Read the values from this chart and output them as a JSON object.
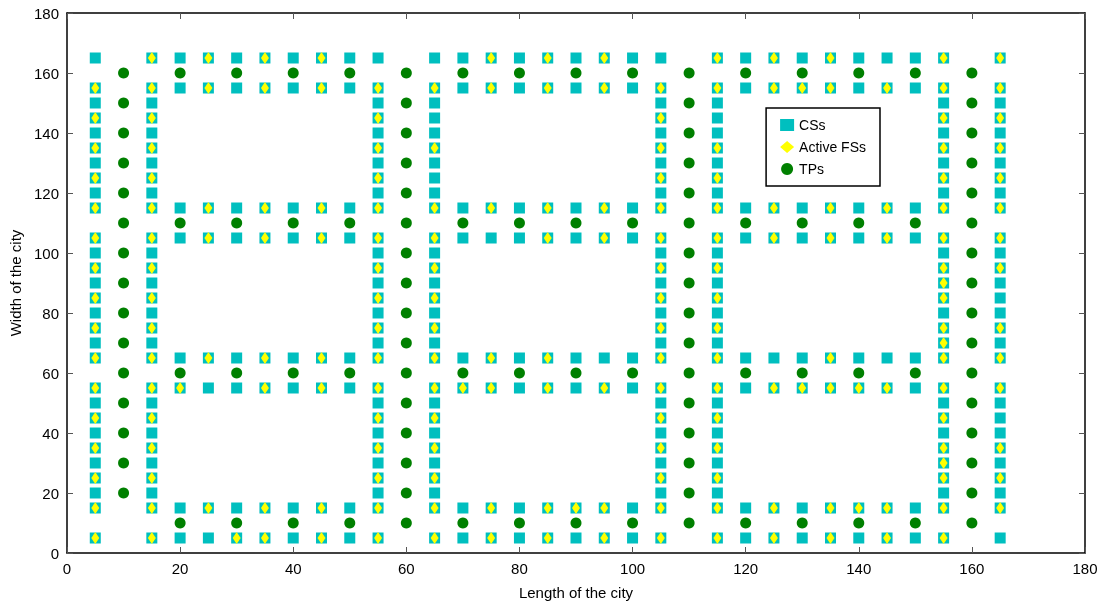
{
  "chart_data": {
    "type": "scatter",
    "xlabel": "Length of the city",
    "ylabel": "Width of the city",
    "xlim": [
      0,
      180
    ],
    "ylim": [
      0,
      180
    ],
    "xticks": [
      0,
      20,
      40,
      60,
      80,
      100,
      120,
      140,
      160,
      180
    ],
    "yticks": [
      0,
      20,
      40,
      60,
      80,
      100,
      120,
      140,
      160,
      180
    ],
    "grid": false,
    "legend": "top right",
    "series": [
      {
        "name": "CSs",
        "color": "#00bfbf",
        "marker": "square",
        "x": [
          5,
          5,
          5,
          5,
          5,
          5,
          5,
          5,
          5,
          5,
          5,
          5,
          5,
          5,
          5,
          5,
          5,
          5,
          5,
          5,
          5,
          5,
          5,
          5,
          5,
          5,
          5,
          5,
          5,
          15,
          15,
          15,
          15,
          15,
          15,
          15,
          15,
          15,
          15,
          15,
          15,
          15,
          15,
          15,
          15,
          15,
          15,
          15,
          15,
          15,
          15,
          15,
          15,
          15,
          15,
          15,
          15,
          15,
          55,
          55,
          55,
          55,
          55,
          55,
          55,
          55,
          55,
          55,
          55,
          55,
          55,
          55,
          55,
          55,
          55,
          55,
          55,
          55,
          55,
          55,
          55,
          55,
          55,
          55,
          55,
          55,
          55,
          65,
          65,
          65,
          65,
          65,
          65,
          65,
          65,
          65,
          65,
          65,
          65,
          65,
          65,
          65,
          65,
          65,
          65,
          65,
          65,
          65,
          65,
          65,
          65,
          65,
          65,
          65,
          65,
          65,
          105,
          105,
          105,
          105,
          105,
          105,
          105,
          105,
          105,
          105,
          105,
          105,
          105,
          105,
          105,
          105,
          105,
          105,
          105,
          105,
          105,
          105,
          105,
          105,
          105,
          105,
          105,
          105,
          105,
          115,
          115,
          115,
          115,
          115,
          115,
          115,
          115,
          115,
          115,
          115,
          115,
          115,
          115,
          115,
          115,
          115,
          115,
          115,
          115,
          115,
          115,
          115,
          115,
          115,
          115,
          115,
          115,
          115,
          155,
          155,
          155,
          155,
          155,
          155,
          155,
          155,
          155,
          155,
          155,
          155,
          155,
          155,
          155,
          155,
          155,
          155,
          155,
          155,
          155,
          155,
          155,
          155,
          155,
          155,
          155,
          155,
          155,
          165,
          165,
          165,
          165,
          165,
          165,
          165,
          165,
          165,
          165,
          165,
          165,
          165,
          165,
          165,
          165,
          165,
          165,
          165,
          165,
          165,
          165,
          165,
          165,
          165,
          165,
          165,
          165,
          165,
          20,
          25,
          30,
          35,
          40,
          45,
          50,
          70,
          75,
          80,
          85,
          90,
          95,
          100,
          120,
          125,
          130,
          135,
          140,
          145,
          150,
          20,
          25,
          30,
          35,
          40,
          45,
          50,
          70,
          75,
          80,
          85,
          90,
          95,
          100,
          120,
          125,
          130,
          135,
          140,
          145,
          150,
          20,
          25,
          30,
          35,
          40,
          45,
          50,
          70,
          75,
          80,
          85,
          90,
          95,
          100,
          120,
          125,
          130,
          135,
          140,
          145,
          150,
          20,
          25,
          30,
          35,
          40,
          45,
          50,
          70,
          75,
          80,
          85,
          90,
          95,
          100,
          120,
          125,
          130,
          135,
          140,
          145,
          150,
          20,
          25,
          30,
          35,
          40,
          45,
          50,
          70,
          75,
          80,
          85,
          90,
          95,
          100,
          120,
          125,
          130,
          135,
          140,
          145,
          150,
          20,
          25,
          30,
          35,
          40,
          45,
          50,
          70,
          75,
          80,
          85,
          90,
          95,
          100,
          120,
          125,
          130,
          135,
          140,
          145,
          150,
          20,
          25,
          30,
          35,
          40,
          45,
          50,
          70,
          75,
          80,
          85,
          90,
          95,
          100,
          120,
          125,
          130,
          135,
          140,
          145,
          150,
          20,
          25,
          30,
          35,
          40,
          45,
          50,
          70,
          75,
          80,
          85,
          90,
          95,
          100,
          120,
          125,
          130,
          135,
          140,
          145,
          150
        ],
        "values": [
          5,
          15,
          20,
          25,
          30,
          35,
          40,
          45,
          50,
          55,
          65,
          70,
          75,
          80,
          85,
          90,
          95,
          100,
          105,
          115,
          120,
          125,
          130,
          135,
          140,
          145,
          150,
          155,
          165,
          5,
          15,
          20,
          25,
          30,
          35,
          40,
          45,
          50,
          55,
          65,
          70,
          75,
          80,
          85,
          90,
          95,
          100,
          105,
          115,
          120,
          125,
          130,
          135,
          140,
          145,
          150,
          155,
          165,
          5,
          15,
          20,
          25,
          30,
          35,
          40,
          45,
          50,
          55,
          65,
          70,
          75,
          80,
          85,
          90,
          95,
          100,
          105,
          115,
          120,
          125,
          130,
          135,
          140,
          145,
          150,
          155,
          165,
          5,
          15,
          20,
          25,
          30,
          35,
          40,
          45,
          50,
          55,
          65,
          70,
          75,
          80,
          85,
          90,
          95,
          100,
          105,
          115,
          120,
          125,
          130,
          135,
          140,
          145,
          150,
          155,
          165,
          5,
          15,
          20,
          25,
          30,
          35,
          40,
          45,
          50,
          55,
          65,
          70,
          75,
          80,
          85,
          90,
          95,
          100,
          105,
          115,
          120,
          125,
          130,
          135,
          140,
          145,
          150,
          155,
          165,
          5,
          15,
          20,
          25,
          30,
          35,
          40,
          45,
          50,
          55,
          65,
          70,
          75,
          80,
          85,
          90,
          95,
          100,
          105,
          115,
          120,
          125,
          130,
          135,
          140,
          145,
          150,
          155,
          165,
          5,
          15,
          20,
          25,
          30,
          35,
          40,
          45,
          50,
          55,
          65,
          70,
          75,
          80,
          85,
          90,
          95,
          100,
          105,
          115,
          120,
          125,
          130,
          135,
          140,
          145,
          150,
          155,
          165,
          5,
          15,
          20,
          25,
          30,
          35,
          40,
          45,
          50,
          55,
          65,
          70,
          75,
          80,
          85,
          90,
          95,
          100,
          105,
          115,
          120,
          125,
          130,
          135,
          140,
          145,
          150,
          155,
          165,
          5,
          5,
          5,
          5,
          5,
          5,
          5,
          5,
          5,
          5,
          5,
          5,
          5,
          5,
          5,
          5,
          5,
          5,
          5,
          5,
          5,
          15,
          15,
          15,
          15,
          15,
          15,
          15,
          15,
          15,
          15,
          15,
          15,
          15,
          15,
          15,
          15,
          15,
          15,
          15,
          15,
          15,
          55,
          55,
          55,
          55,
          55,
          55,
          55,
          55,
          55,
          55,
          55,
          55,
          55,
          55,
          55,
          55,
          55,
          55,
          55,
          55,
          55,
          65,
          65,
          65,
          65,
          65,
          65,
          65,
          65,
          65,
          65,
          65,
          65,
          65,
          65,
          65,
          65,
          65,
          65,
          65,
          65,
          65,
          105,
          105,
          105,
          105,
          105,
          105,
          105,
          105,
          105,
          105,
          105,
          105,
          105,
          105,
          105,
          105,
          105,
          105,
          105,
          105,
          105,
          115,
          115,
          115,
          115,
          115,
          115,
          115,
          115,
          115,
          115,
          115,
          115,
          115,
          115,
          115,
          115,
          115,
          115,
          115,
          115,
          115,
          155,
          155,
          155,
          155,
          155,
          155,
          155,
          155,
          155,
          155,
          155,
          155,
          155,
          155,
          155,
          155,
          155,
          155,
          155,
          155,
          155,
          165,
          165,
          165,
          165,
          165,
          165,
          165,
          165,
          165,
          165,
          165,
          165,
          165,
          165,
          165,
          165,
          165,
          165,
          165,
          165,
          165
        ]
      },
      {
        "name": "Active FSs",
        "color": "#ffff00",
        "marker": "diamond",
        "x": [
          5,
          5,
          5,
          5,
          5,
          5,
          5,
          5,
          5,
          5,
          5,
          5,
          5,
          5,
          5,
          5,
          15,
          15,
          15,
          15,
          15,
          15,
          15,
          15,
          15,
          15,
          15,
          15,
          15,
          15,
          15,
          15,
          15,
          55,
          55,
          55,
          55,
          55,
          55,
          55,
          55,
          55,
          55,
          55,
          55,
          55,
          55,
          55,
          55,
          65,
          65,
          65,
          65,
          65,
          65,
          65,
          65,
          65,
          65,
          65,
          65,
          65,
          65,
          105,
          105,
          105,
          105,
          105,
          105,
          105,
          105,
          105,
          105,
          105,
          105,
          105,
          105,
          105,
          105,
          115,
          115,
          115,
          115,
          115,
          115,
          115,
          115,
          115,
          115,
          115,
          115,
          115,
          115,
          115,
          115,
          155,
          155,
          155,
          155,
          155,
          155,
          155,
          155,
          155,
          155,
          155,
          155,
          155,
          155,
          155,
          155,
          155,
          155,
          155,
          155,
          165,
          165,
          165,
          165,
          165,
          165,
          165,
          165,
          165,
          165,
          165,
          165,
          165,
          165,
          25,
          35,
          45,
          75,
          85,
          95,
          125,
          135,
          25,
          35,
          45,
          75,
          85,
          95,
          125,
          130,
          135,
          145,
          25,
          35,
          45,
          75,
          85,
          95,
          125,
          135,
          145,
          25,
          35,
          45,
          85,
          95,
          125,
          135,
          145,
          25,
          35,
          45,
          75,
          85,
          135,
          20,
          35,
          45,
          70,
          75,
          85,
          95,
          125,
          130,
          135,
          140,
          145,
          25,
          35,
          45,
          75,
          85,
          90,
          95,
          125,
          135,
          140,
          145,
          30,
          35,
          45,
          75,
          85,
          95,
          125,
          135,
          145
        ],
        "values": [
          5,
          15,
          25,
          35,
          45,
          55,
          65,
          75,
          85,
          95,
          105,
          115,
          125,
          135,
          145,
          155,
          5,
          15,
          25,
          35,
          45,
          55,
          65,
          75,
          85,
          95,
          105,
          115,
          125,
          135,
          145,
          155,
          165,
          5,
          15,
          25,
          35,
          45,
          55,
          65,
          75,
          85,
          95,
          105,
          115,
          125,
          135,
          145,
          155,
          5,
          15,
          25,
          35,
          45,
          55,
          65,
          75,
          85,
          95,
          105,
          115,
          135,
          155,
          5,
          15,
          25,
          35,
          45,
          55,
          65,
          75,
          85,
          95,
          105,
          115,
          125,
          135,
          145,
          155,
          5,
          15,
          25,
          35,
          45,
          55,
          65,
          75,
          85,
          95,
          105,
          115,
          125,
          135,
          155,
          165,
          5,
          15,
          25,
          30,
          35,
          45,
          55,
          65,
          70,
          75,
          85,
          90,
          95,
          105,
          115,
          125,
          135,
          145,
          155,
          165,
          15,
          25,
          35,
          55,
          65,
          75,
          95,
          105,
          115,
          125,
          135,
          145,
          155,
          165,
          165,
          165,
          165,
          165,
          165,
          165,
          165,
          165,
          155,
          155,
          155,
          155,
          155,
          155,
          155,
          155,
          155,
          155,
          115,
          115,
          115,
          115,
          115,
          115,
          115,
          115,
          115,
          105,
          105,
          105,
          105,
          105,
          105,
          105,
          105,
          65,
          65,
          65,
          65,
          65,
          65,
          55,
          55,
          55,
          55,
          55,
          55,
          55,
          55,
          55,
          55,
          55,
          55,
          15,
          15,
          15,
          15,
          15,
          15,
          15,
          15,
          15,
          15,
          15,
          5,
          5,
          5,
          5,
          5,
          5,
          5,
          5,
          5
        ]
      },
      {
        "name": "TPs",
        "color": "#008000",
        "marker": "circle",
        "x": [
          10,
          10,
          10,
          10,
          10,
          10,
          10,
          10,
          10,
          10,
          10,
          10,
          10,
          10,
          10,
          60,
          60,
          60,
          60,
          60,
          60,
          60,
          60,
          60,
          60,
          60,
          60,
          60,
          60,
          60,
          60,
          110,
          110,
          110,
          110,
          110,
          110,
          110,
          110,
          110,
          110,
          110,
          110,
          110,
          110,
          110,
          110,
          160,
          160,
          160,
          160,
          160,
          160,
          160,
          160,
          160,
          160,
          160,
          160,
          160,
          160,
          160,
          160,
          20,
          30,
          40,
          50,
          70,
          80,
          90,
          100,
          120,
          130,
          140,
          150,
          20,
          30,
          40,
          50,
          70,
          80,
          90,
          100,
          120,
          130,
          140,
          150,
          20,
          30,
          40,
          50,
          70,
          80,
          90,
          100,
          120,
          130,
          140,
          150,
          20,
          30,
          40,
          50,
          70,
          80,
          90,
          100,
          120,
          130,
          140,
          150
        ],
        "values": [
          20,
          30,
          40,
          50,
          60,
          70,
          80,
          90,
          100,
          110,
          120,
          130,
          140,
          150,
          160,
          10,
          20,
          30,
          40,
          50,
          60,
          70,
          80,
          90,
          100,
          110,
          120,
          130,
          140,
          150,
          160,
          10,
          20,
          30,
          40,
          50,
          60,
          70,
          80,
          90,
          100,
          110,
          120,
          130,
          140,
          150,
          160,
          10,
          20,
          30,
          40,
          50,
          60,
          70,
          80,
          90,
          100,
          110,
          120,
          130,
          140,
          150,
          160,
          10,
          10,
          10,
          10,
          10,
          10,
          10,
          10,
          10,
          10,
          10,
          10,
          60,
          60,
          60,
          60,
          60,
          60,
          60,
          60,
          60,
          60,
          60,
          60,
          110,
          110,
          110,
          110,
          110,
          110,
          110,
          110,
          110,
          110,
          110,
          110,
          160,
          160,
          160,
          160,
          160,
          160,
          160,
          160,
          160,
          160,
          160,
          160
        ]
      }
    ]
  }
}
